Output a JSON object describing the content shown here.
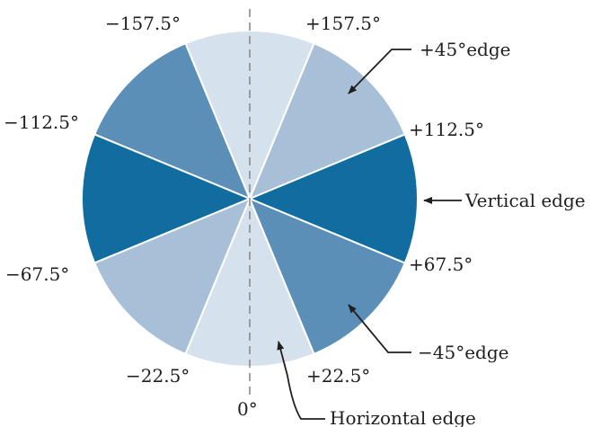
{
  "colors": {
    "background": "#ffffff",
    "sector_lightest": "#d6e1ee",
    "sector_light": "#a8bfd8",
    "sector_medium": "#5b8fb8",
    "sector_dark": "#116d9f",
    "divider": "#ffffff",
    "axis_dash": "#8a8a8a",
    "arrow": "#1f1f1f",
    "text": "#1f1f1f"
  },
  "angle_labels": {
    "minus_157_5": "−157.5°",
    "plus_157_5": "+157.5°",
    "minus_112_5": "−112.5°",
    "plus_112_5": "+112.5°",
    "minus_67_5": "−67.5°",
    "plus_67_5": "+67.5°",
    "minus_22_5": "−22.5°",
    "plus_22_5": "+22.5°",
    "zero": "0°"
  },
  "edge_labels": {
    "plus_45": "+45°edge",
    "vertical": "Vertical edge",
    "minus_45": "−45°edge",
    "horizontal": "Horizontal edge"
  },
  "sectors": [
    {
      "name": "horizontal",
      "tone": "sector_lightest"
    },
    {
      "name": "minus-45",
      "tone": "sector_medium"
    },
    {
      "name": "vertical",
      "tone": "sector_dark"
    },
    {
      "name": "plus-45",
      "tone": "sector_light"
    },
    {
      "name": "horizontal",
      "tone": "sector_lightest"
    },
    {
      "name": "minus-45",
      "tone": "sector_medium"
    },
    {
      "name": "vertical",
      "tone": "sector_dark"
    },
    {
      "name": "plus-45",
      "tone": "sector_light"
    }
  ]
}
